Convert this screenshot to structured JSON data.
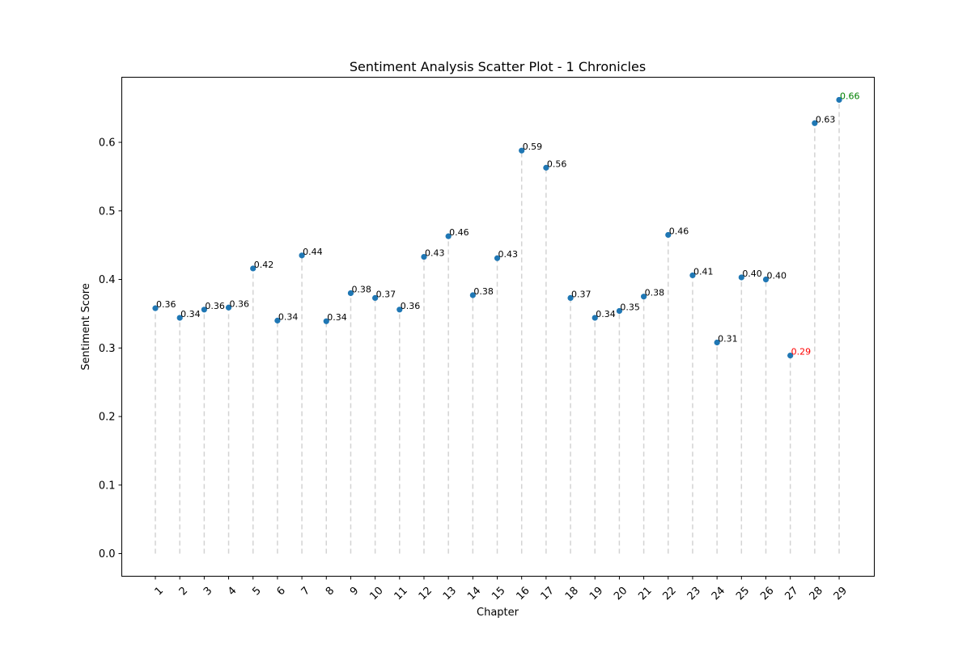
{
  "chart_data": {
    "type": "scatter",
    "title": "Sentiment Analysis Scatter Plot - 1 Chronicles",
    "xlabel": "Chapter",
    "ylabel": "Sentiment Score",
    "x": [
      1,
      2,
      3,
      4,
      5,
      6,
      7,
      8,
      9,
      10,
      11,
      12,
      13,
      14,
      15,
      16,
      17,
      18,
      19,
      20,
      21,
      22,
      23,
      24,
      25,
      26,
      27,
      28,
      29
    ],
    "values": [
      0.358,
      0.344,
      0.356,
      0.359,
      0.416,
      0.34,
      0.435,
      0.339,
      0.38,
      0.373,
      0.356,
      0.433,
      0.463,
      0.377,
      0.431,
      0.588,
      0.563,
      0.373,
      0.344,
      0.354,
      0.375,
      0.465,
      0.406,
      0.308,
      0.403,
      0.4,
      0.289,
      0.628,
      0.662
    ],
    "labels": [
      "0.36",
      "0.34",
      "0.36",
      "0.36",
      "0.42",
      "0.34",
      "0.44",
      "0.34",
      "0.38",
      "0.37",
      "0.36",
      "0.43",
      "0.46",
      "0.38",
      "0.43",
      "0.59",
      "0.56",
      "0.37",
      "0.34",
      "0.35",
      "0.38",
      "0.46",
      "0.41",
      "0.31",
      "0.40",
      "0.40",
      "0.29",
      "0.63",
      "0.66"
    ],
    "ylim": [
      -0.033,
      0.695
    ],
    "yticks": [
      0.0,
      0.1,
      0.2,
      0.3,
      0.4,
      0.5,
      0.6
    ],
    "ytick_labels": [
      "0.0",
      "0.1",
      "0.2",
      "0.3",
      "0.4",
      "0.5",
      "0.6"
    ],
    "grid": false,
    "stems": true,
    "highlight": {
      "min_index": 26,
      "max_index": 28
    },
    "colors": {
      "point": "#1f77b4",
      "stem": "#d3d3d3",
      "min_label": "#ff0000",
      "max_label": "#008000",
      "label": "#000000"
    }
  }
}
